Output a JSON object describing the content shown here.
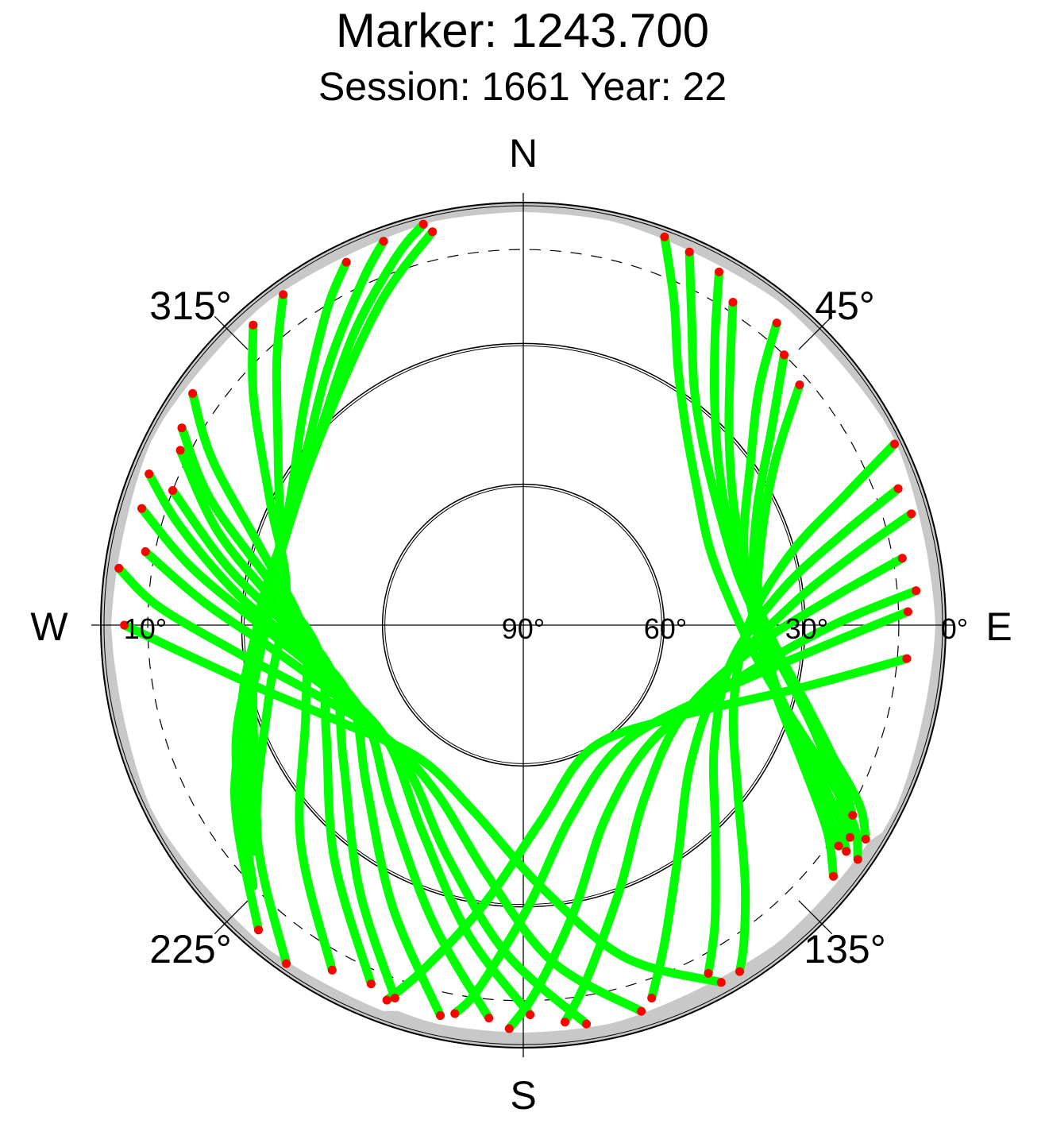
{
  "title": "Marker: 1243.700",
  "subtitle": "Session: 1661 Year: 22",
  "colors": {
    "track": "#00ff00",
    "track_end": "#ff0000",
    "horizon_mask": "#c8c8c8",
    "outline": "#000000"
  },
  "chart_data": {
    "type": "scatter",
    "projection": "polar-sky",
    "compass": {
      "n": "N",
      "e": "E",
      "s": "S",
      "w": "W"
    },
    "azimuth_labels": [
      "45°",
      "135°",
      "225°",
      "315°"
    ],
    "elevation_labels": [
      "0°",
      "30°",
      "60°",
      "90°",
      "10°"
    ],
    "elevation_rings_deg": [
      0,
      10,
      30,
      60
    ],
    "cutoff_elevation_deg": 10,
    "series": [
      {
        "color": "#00ff00",
        "note_points": "satellite tracks (elevation, azimuth)",
        "tracks": [
          [
            [
              2,
              20
            ],
            [
              14,
              25
            ],
            [
              26,
              31
            ],
            [
              36,
              40
            ],
            [
              43,
              52
            ],
            [
              47,
              67
            ],
            [
              46,
              82
            ],
            [
              41,
              96
            ],
            [
              32,
              107
            ],
            [
              20,
              115
            ],
            [
              8,
              121
            ],
            [
              3,
              125
            ]
          ],
          [
            [
              3,
              24
            ],
            [
              16,
              29
            ],
            [
              28,
              36
            ],
            [
              37,
              47
            ],
            [
              42,
              61
            ],
            [
              43,
              77
            ],
            [
              39,
              91
            ],
            [
              31,
              103
            ],
            [
              20,
              112
            ],
            [
              9,
              118
            ],
            [
              4,
              122
            ]
          ],
          [
            [
              4,
              29
            ],
            [
              17,
              34
            ],
            [
              29,
              42
            ],
            [
              38,
              54
            ],
            [
              42,
              69
            ],
            [
              40,
              85
            ],
            [
              34,
              99
            ],
            [
              24,
              110
            ],
            [
              14,
              118
            ],
            [
              7,
              123
            ]
          ],
          [
            [
              8,
              33
            ],
            [
              20,
              39
            ],
            [
              31,
              48
            ],
            [
              39,
              62
            ],
            [
              41,
              78
            ],
            [
              37,
              93
            ],
            [
              28,
              105
            ],
            [
              17,
              114
            ],
            [
              9,
              120
            ]
          ],
          [
            [
              6,
              40
            ],
            [
              19,
              45
            ],
            [
              31,
              55
            ],
            [
              40,
              70
            ],
            [
              41,
              88
            ],
            [
              35,
              103
            ],
            [
              24,
              114
            ],
            [
              12,
              121
            ],
            [
              6,
              125
            ]
          ],
          [
            [
              10,
              44
            ],
            [
              23,
              52
            ],
            [
              34,
              63
            ],
            [
              40,
              79
            ],
            [
              38,
              96
            ],
            [
              30,
              110
            ],
            [
              18,
              119
            ],
            [
              8,
              125
            ]
          ],
          [
            [
              12,
              49
            ],
            [
              26,
              57
            ],
            [
              36,
              70
            ],
            [
              40,
              88
            ],
            [
              35,
              104
            ],
            [
              24,
              116
            ],
            [
              12,
              124
            ],
            [
              5,
              129
            ]
          ],
          [
            [
              2,
              64
            ],
            [
              16,
              68
            ],
            [
              31,
              75
            ],
            [
              42,
              90
            ],
            [
              42,
              111
            ],
            [
              32,
              128
            ],
            [
              18,
              139
            ],
            [
              8,
              145
            ],
            [
              3,
              148
            ]
          ],
          [
            [
              5,
              70
            ],
            [
              19,
              74
            ],
            [
              34,
              82
            ],
            [
              45,
              100
            ],
            [
              42,
              122
            ],
            [
              30,
              137
            ],
            [
              15,
              147
            ],
            [
              6,
              152
            ]
          ],
          [
            [
              4,
              74
            ],
            [
              18,
              78
            ],
            [
              33,
              86
            ],
            [
              46,
              105
            ],
            [
              44,
              129
            ],
            [
              31,
              146
            ],
            [
              16,
              156
            ],
            [
              6,
              161
            ]
          ],
          [
            [
              8,
              80
            ],
            [
              24,
              85
            ],
            [
              41,
              96
            ],
            [
              51,
              120
            ],
            [
              45,
              145
            ],
            [
              30,
              160
            ],
            [
              13,
              170
            ],
            [
              5,
              174
            ]
          ],
          [
            [
              6,
              85
            ],
            [
              24,
              90
            ],
            [
              42,
              103
            ],
            [
              53,
              130
            ],
            [
              46,
              156
            ],
            [
              28,
              170
            ],
            [
              12,
              178
            ],
            [
              4,
              182
            ]
          ],
          [
            [
              8,
              88
            ],
            [
              28,
              95
            ],
            [
              47,
              110
            ],
            [
              57,
              140
            ],
            [
              48,
              166
            ],
            [
              30,
              179
            ],
            [
              12,
              187
            ],
            [
              6,
              190
            ]
          ],
          [
            [
              8,
              95
            ],
            [
              30,
              103
            ],
            [
              52,
              121
            ],
            [
              60,
              151
            ],
            [
              48,
              175
            ],
            [
              30,
              188
            ],
            [
              14,
              196
            ],
            [
              5,
              200
            ]
          ],
          [
            [
              3,
              151
            ],
            [
              16,
              163
            ],
            [
              34,
              176
            ],
            [
              49,
              195
            ],
            [
              54,
              218
            ],
            [
              46,
              242
            ],
            [
              33,
              256
            ],
            [
              18,
              265
            ],
            [
              5,
              270
            ]
          ],
          [
            [
              4,
              163
            ],
            [
              18,
              175
            ],
            [
              36,
              188
            ],
            [
              50,
              208
            ],
            [
              52,
              232
            ],
            [
              43,
              252
            ],
            [
              28,
              265
            ],
            [
              12,
              273
            ],
            [
              3,
              278
            ]
          ],
          [
            [
              4,
              171
            ],
            [
              20,
              183
            ],
            [
              38,
              198
            ],
            [
              51,
              220
            ],
            [
              49,
              245
            ],
            [
              38,
              263
            ],
            [
              22,
              274
            ],
            [
              8,
              281
            ]
          ],
          [
            [
              7,
              179
            ],
            [
              23,
              190
            ],
            [
              41,
              206
            ],
            [
              52,
              230
            ],
            [
              47,
              254
            ],
            [
              34,
              270
            ],
            [
              18,
              280
            ],
            [
              5,
              287
            ]
          ],
          [
            [
              6,
              185
            ],
            [
              24,
              197
            ],
            [
              42,
              216
            ],
            [
              51,
              240
            ],
            [
              44,
              262
            ],
            [
              29,
              276
            ],
            [
              14,
              286
            ],
            [
              4,
              292
            ]
          ],
          [
            [
              5,
              192
            ],
            [
              24,
              205
            ],
            [
              42,
              224
            ],
            [
              50,
              247
            ],
            [
              42,
              267
            ],
            [
              26,
              281
            ],
            [
              10,
              291
            ]
          ],
          [
            [
              6,
              199
            ],
            [
              24,
              212
            ],
            [
              42,
              233
            ],
            [
              48,
              256
            ],
            [
              38,
              274
            ],
            [
              22,
              287
            ],
            [
              8,
              297
            ]
          ],
          [
            [
              7,
              203
            ],
            [
              26,
              219
            ],
            [
              42,
              241
            ],
            [
              46,
              263
            ],
            [
              35,
              280
            ],
            [
              18,
              292
            ],
            [
              6,
              300
            ]
          ],
          [
            [
              6,
              209
            ],
            [
              24,
              226
            ],
            [
              40,
              248
            ],
            [
              43,
              269
            ],
            [
              32,
              286
            ],
            [
              15,
              298
            ],
            [
              4,
              305
            ]
          ],
          [
            [
              2,
              215
            ],
            [
              18,
              232
            ],
            [
              34,
              255
            ],
            [
              39,
              278
            ],
            [
              30,
              296
            ],
            [
              15,
              310
            ],
            [
              4,
              318
            ]
          ],
          [
            [
              4,
              221
            ],
            [
              19,
              240
            ],
            [
              33,
              262
            ],
            [
              36,
              285
            ],
            [
              27,
              304
            ],
            [
              13,
              317
            ],
            [
              3,
              324
            ]
          ],
          [
            [
              10,
              226
            ],
            [
              24,
              248
            ],
            [
              35,
              272
            ],
            [
              34,
              297
            ],
            [
              24,
              315
            ],
            [
              11,
              328
            ],
            [
              4,
              334
            ]
          ],
          [
            [
              15,
              230
            ],
            [
              28,
              255
            ],
            [
              36,
              283
            ],
            [
              32,
              306
            ],
            [
              21,
              323
            ],
            [
              9,
              335
            ],
            [
              3,
              340
            ]
          ],
          [
            [
              19,
              233
            ],
            [
              31,
              261
            ],
            [
              36,
              290
            ],
            [
              30,
              314
            ],
            [
              18,
              330
            ],
            [
              7,
              341
            ],
            [
              2,
              346
            ]
          ],
          [
            [
              22,
              237
            ],
            [
              33,
              268
            ],
            [
              35,
              298
            ],
            [
              27,
              321
            ],
            [
              14,
              337
            ],
            [
              4,
              347
            ]
          ]
        ]
      },
      {
        "color": "#ff0000",
        "note_points": "start/end samples (elevation, azimuth)",
        "points": [
          [
            2,
            20
          ],
          [
            3,
            24
          ],
          [
            4,
            29
          ],
          [
            8,
            33
          ],
          [
            6,
            40
          ],
          [
            10,
            44
          ],
          [
            12,
            49
          ],
          [
            2,
            64
          ],
          [
            5,
            70
          ],
          [
            4,
            74
          ],
          [
            8,
            80
          ],
          [
            6,
            85
          ],
          [
            8,
            88
          ],
          [
            8,
            95
          ],
          [
            3,
            125
          ],
          [
            4,
            122
          ],
          [
            7,
            123
          ],
          [
            9,
            120
          ],
          [
            6,
            125
          ],
          [
            8,
            125
          ],
          [
            5,
            129
          ],
          [
            3,
            148
          ],
          [
            6,
            152
          ],
          [
            6,
            161
          ],
          [
            5,
            174
          ],
          [
            4,
            182
          ],
          [
            6,
            190
          ],
          [
            5,
            200
          ],
          [
            3,
            151
          ],
          [
            4,
            163
          ],
          [
            4,
            171
          ],
          [
            7,
            179
          ],
          [
            6,
            185
          ],
          [
            5,
            192
          ],
          [
            6,
            199
          ],
          [
            7,
            203
          ],
          [
            6,
            209
          ],
          [
            2,
            215
          ],
          [
            4,
            221
          ],
          [
            5,
            270
          ],
          [
            3,
            278
          ],
          [
            8,
            281
          ],
          [
            5,
            287
          ],
          [
            4,
            292
          ],
          [
            10,
            291
          ],
          [
            8,
            297
          ],
          [
            6,
            300
          ],
          [
            4,
            305
          ],
          [
            4,
            318
          ],
          [
            3,
            324
          ],
          [
            4,
            334
          ],
          [
            3,
            340
          ],
          [
            2,
            346
          ],
          [
            4,
            347
          ]
        ]
      }
    ]
  }
}
